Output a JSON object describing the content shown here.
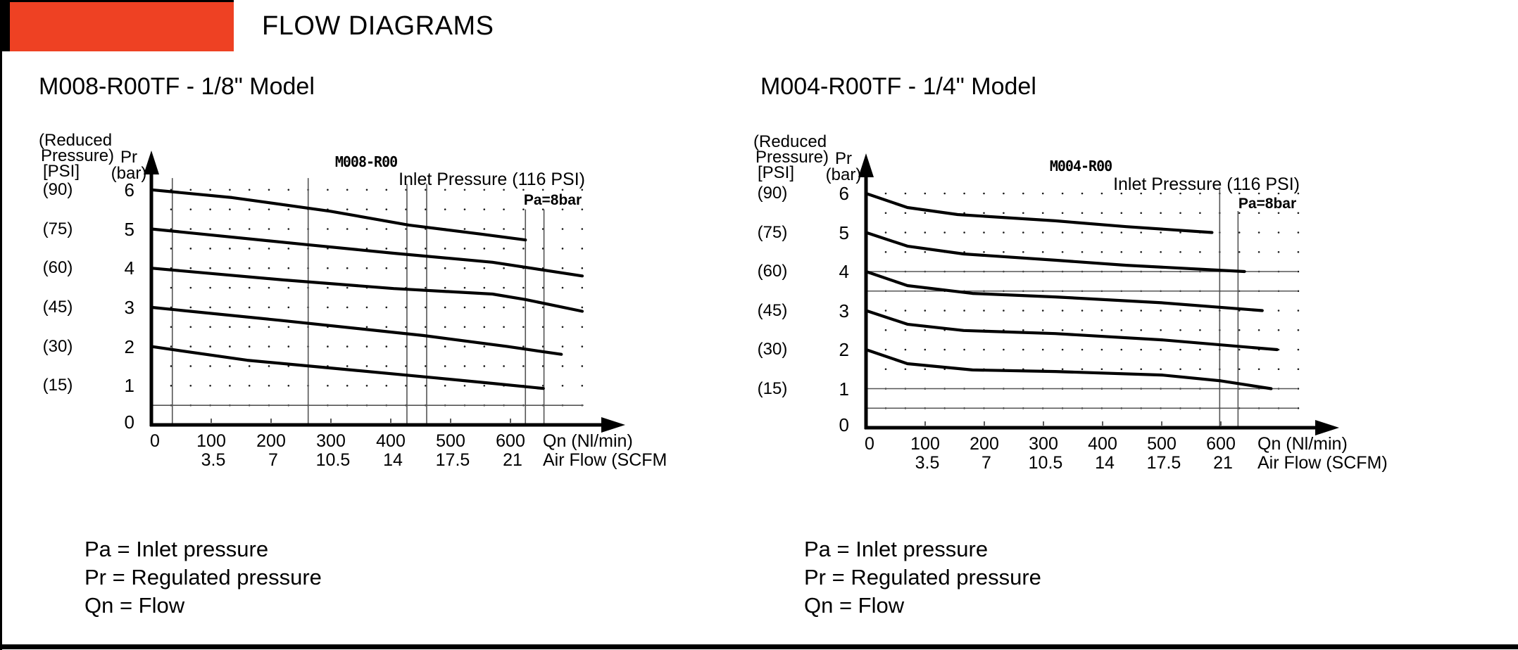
{
  "header": {
    "title": "FLOW DIAGRAMS",
    "accent_color": "#EE4123",
    "tab_color": "#000000"
  },
  "legend": {
    "pa": "Pa = Inlet pressure",
    "pr": "Pr = Regulated pressure",
    "qn": "Qn = Flow"
  },
  "charts": [
    {
      "title": "M008-R00TF - 1/8\" Model",
      "plot_label": "M008-R00",
      "inlet_label": "Inlet Pressure (116 PSI)",
      "pa_label": "Pa=8bar",
      "y_header": [
        "(Reduced",
        "Pressure)",
        "[PSI]"
      ],
      "y_unit": [
        "Pr",
        "(bar)"
      ],
      "psi_labels": [
        "(90)",
        "(75)",
        "(60)",
        "(45)",
        "(30)",
        "(15)"
      ],
      "bar_labels": [
        "6",
        "5",
        "4",
        "3",
        "2",
        "1",
        "0"
      ],
      "x_ticks_nl": [
        "0",
        "100",
        "200",
        "300",
        "400",
        "500",
        "600"
      ],
      "x_ticks_scfm": [
        "3.5",
        "7",
        "10.5",
        "14",
        "17.5",
        "21"
      ],
      "x_label_nl": "Qn (Nl/min)",
      "x_label_scfm": "Air Flow (SCFM",
      "chart_data": {
        "type": "line",
        "title": "M008-R00",
        "xlabel": "Qn (Nl/min)",
        "x2label": "Air Flow (SCFM)",
        "ylabel": "Pr (bar)",
        "y2label": "Reduced Pressure [PSI]",
        "xlim": [
          0,
          800
        ],
        "ylim": [
          0,
          7
        ],
        "x_ticks": [
          0,
          100,
          200,
          300,
          400,
          500,
          600
        ],
        "x2_ticks": [
          3.5,
          7,
          10.5,
          14,
          17.5,
          21
        ],
        "grid": "dotted",
        "annotations": [
          "Inlet Pressure (116 PSI)",
          "Pa=8bar"
        ],
        "series": [
          {
            "name": "Pr 6 bar (90 PSI)",
            "points": [
              [
                0,
                6.0
              ],
              [
                135,
                5.8
              ],
              [
                300,
                5.45
              ],
              [
                430,
                5.1
              ],
              [
                550,
                4.87
              ],
              [
                625,
                4.72
              ]
            ]
          },
          {
            "name": "Pr 5 bar (75 PSI)",
            "points": [
              [
                0,
                5.0
              ],
              [
                260,
                4.6
              ],
              [
                405,
                4.38
              ],
              [
                570,
                4.15
              ],
              [
                720,
                3.8
              ]
            ]
          },
          {
            "name": "Pr 4 bar (60 PSI)",
            "points": [
              [
                0,
                4.0
              ],
              [
                220,
                3.7
              ],
              [
                405,
                3.48
              ],
              [
                570,
                3.34
              ],
              [
                625,
                3.2
              ],
              [
                720,
                2.9
              ]
            ]
          },
          {
            "name": "Pr 3 bar (45 PSI)",
            "points": [
              [
                0,
                3.0
              ],
              [
                220,
                2.66
              ],
              [
                455,
                2.28
              ],
              [
                595,
                2.0
              ],
              [
                685,
                1.8
              ]
            ]
          },
          {
            "name": "Pr 2 bar (30 PSI)",
            "points": [
              [
                0,
                2.0
              ],
              [
                160,
                1.65
              ],
              [
                335,
                1.4
              ],
              [
                475,
                1.2
              ],
              [
                570,
                1.06
              ],
              [
                655,
                0.93
              ]
            ]
          }
        ],
        "vertical_ref_lines": [
          {
            "flow": 35,
            "top_bar": 6.3
          },
          {
            "flow": 262,
            "top_bar": 6.3
          },
          {
            "flow": 427,
            "top_bar": 6.15
          },
          {
            "flow": 460,
            "top_bar": 6.15
          },
          {
            "flow": 625,
            "top_bar": 5.5
          },
          {
            "flow": 656,
            "top_bar": 5.5
          }
        ],
        "horizontal_ref_lines": [
          {
            "bar": 0.5,
            "end_flow": 722
          }
        ]
      }
    },
    {
      "title": "M004-R00TF - 1/4\" Model",
      "plot_label": "M004-R00",
      "inlet_label": "Inlet Pressure (116 PSI)",
      "pa_label": "Pa=8bar",
      "y_header": [
        "(Reduced",
        "Pressure)",
        "[PSI]"
      ],
      "y_unit": [
        "Pr",
        "(bar)"
      ],
      "psi_labels": [
        "(90)",
        "(75)",
        "(60)",
        "(45)",
        "(30)",
        "(15)"
      ],
      "bar_labels": [
        "6",
        "5",
        "4",
        "3",
        "2",
        "1",
        "0"
      ],
      "x_ticks_nl": [
        "0",
        "100",
        "200",
        "300",
        "400",
        "500",
        "600"
      ],
      "x_ticks_scfm": [
        "3.5",
        "7",
        "10.5",
        "14",
        "17.5",
        "21"
      ],
      "x_label_nl": "Qn (Nl/min)",
      "x_label_scfm": "Air Flow (SCFM)",
      "chart_data": {
        "type": "line",
        "title": "M004-R00",
        "xlabel": "Qn (Nl/min)",
        "x2label": "Air Flow (SCFM)",
        "ylabel": "Pr (bar)",
        "y2label": "Reduced Pressure [PSI]",
        "xlim": [
          0,
          800
        ],
        "ylim": [
          0,
          7
        ],
        "x_ticks": [
          0,
          100,
          200,
          300,
          400,
          500,
          600
        ],
        "x2_ticks": [
          3.5,
          7,
          10.5,
          14,
          17.5,
          21
        ],
        "grid": "dotted",
        "annotations": [
          "Inlet Pressure (116 PSI)",
          "Pa=8bar"
        ],
        "series": [
          {
            "name": "Pr 6 bar (90 PSI)",
            "points": [
              [
                0,
                6.0
              ],
              [
                70,
                5.64
              ],
              [
                155,
                5.46
              ],
              [
                320,
                5.3
              ],
              [
                440,
                5.15
              ],
              [
                585,
                5.0
              ]
            ]
          },
          {
            "name": "Pr 5 bar (75 PSI)",
            "points": [
              [
                0,
                5.0
              ],
              [
                70,
                4.65
              ],
              [
                165,
                4.45
              ],
              [
                320,
                4.29
              ],
              [
                440,
                4.16
              ],
              [
                640,
                4.0
              ]
            ]
          },
          {
            "name": "Pr 4 bar (60 PSI)",
            "points": [
              [
                0,
                4.0
              ],
              [
                70,
                3.64
              ],
              [
                180,
                3.44
              ],
              [
                320,
                3.35
              ],
              [
                500,
                3.2
              ],
              [
                670,
                3.0
              ]
            ]
          },
          {
            "name": "Pr 3 bar (45 PSI)",
            "points": [
              [
                0,
                3.0
              ],
              [
                70,
                2.65
              ],
              [
                165,
                2.49
              ],
              [
                320,
                2.41
              ],
              [
                500,
                2.25
              ],
              [
                695,
                2.0
              ]
            ]
          },
          {
            "name": "Pr 2 bar (30 PSI)",
            "points": [
              [
                0,
                2.0
              ],
              [
                70,
                1.64
              ],
              [
                180,
                1.48
              ],
              [
                320,
                1.44
              ],
              [
                500,
                1.35
              ],
              [
                600,
                1.2
              ],
              [
                685,
                1.0
              ]
            ]
          }
        ],
        "vertical_ref_lines": [
          {
            "flow": 598,
            "top_bar": 6.15
          },
          {
            "flow": 629,
            "top_bar": 5.55
          }
        ],
        "horizontal_ref_lines": [
          {
            "bar": 4,
            "end_flow": 729
          },
          {
            "bar": 3.5,
            "end_flow": 729
          },
          {
            "bar": 1,
            "end_flow": 729
          },
          {
            "bar": 0.5,
            "end_flow": 729
          }
        ]
      }
    }
  ]
}
